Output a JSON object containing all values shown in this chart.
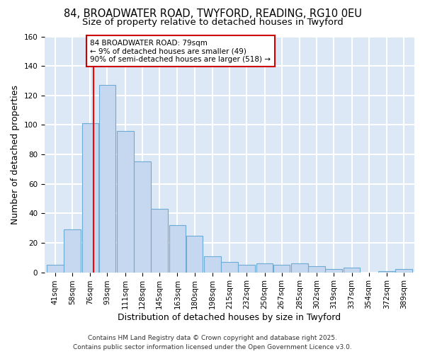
{
  "title1": "84, BROADWATER ROAD, TWYFORD, READING, RG10 0EU",
  "title2": "Size of property relative to detached houses in Twyford",
  "xlabel": "Distribution of detached houses by size in Twyford",
  "ylabel": "Number of detached properties",
  "bins": [
    41,
    58,
    76,
    93,
    111,
    128,
    145,
    163,
    180,
    198,
    215,
    232,
    250,
    267,
    285,
    302,
    319,
    337,
    354,
    372,
    389
  ],
  "counts": [
    5,
    29,
    101,
    127,
    96,
    75,
    43,
    32,
    25,
    11,
    7,
    5,
    6,
    5,
    6,
    4,
    2,
    3,
    0,
    1,
    2
  ],
  "bin_width": 17,
  "property_size": 79,
  "property_label": "84 BROADWATER ROAD: 79sqm",
  "annotation_line1": "← 9% of detached houses are smaller (49)",
  "annotation_line2": "90% of semi-detached houses are larger (518) →",
  "bar_color": "#c5d8f0",
  "bar_edge_color": "#6daad6",
  "vline_color": "#ff0000",
  "annotation_box_color": "#ffffff",
  "annotation_box_edge": "#cc0000",
  "background_color": "#dce8f5",
  "grid_color": "#ffffff",
  "ylim": [
    0,
    160
  ],
  "yticks": [
    0,
    20,
    40,
    60,
    80,
    100,
    120,
    140,
    160
  ],
  "footer": "Contains HM Land Registry data © Crown copyright and database right 2025.\nContains public sector information licensed under the Open Government Licence v3.0.",
  "title1_fontsize": 10.5,
  "title2_fontsize": 9.5,
  "xlabel_fontsize": 9,
  "ylabel_fontsize": 9,
  "tick_fontsize": 7.5,
  "annotation_fontsize": 7.5,
  "footer_fontsize": 6.5
}
